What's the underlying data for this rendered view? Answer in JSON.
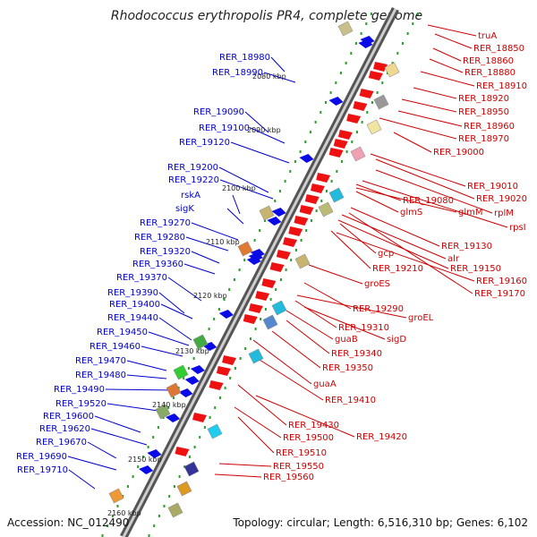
{
  "title": "Rhodococcus erythropolis PR4, complete genome",
  "footer": {
    "accession": "Accession: NC_012490",
    "topology": "Topology: circular; Length: 6,516,310 bp; Genes: 6,102"
  },
  "colors": {
    "backbone": "#777777",
    "tick": "#2a9d2a",
    "left_label": "#0000cc",
    "right_label": "#cc0000"
  },
  "kbp_marks": [
    "2080 kbp",
    "2090 kbp",
    "2100 kbp",
    "2110 kbp",
    "2120 kbp",
    "2130 kbp",
    "2140 kbp",
    "2150 kbp",
    "2160 kbp"
  ],
  "left_labels": [
    "RER_18980",
    "RER_18990",
    "RER_19090",
    "RER_19100",
    "RER_19120",
    "RER_19200",
    "RER_19220",
    "rskA",
    "sigK",
    "RER_19270",
    "RER_19280",
    "RER_19320",
    "RER_19360",
    "RER_19370",
    "RER_19390",
    "RER_19400",
    "RER_19440",
    "RER_19450",
    "RER_19460",
    "RER_19470",
    "RER_19480",
    "RER_19490",
    "RER_19520",
    "RER_19600",
    "RER_19620",
    "RER_19670",
    "RER_19690",
    "RER_19710"
  ],
  "right_labels": [
    "truA",
    "RER_18850",
    "RER_18860",
    "RER_18880",
    "RER_18910",
    "RER_18920",
    "RER_18950",
    "RER_18960",
    "RER_18970",
    "RER_19000",
    "RER_19010",
    "RER_19020",
    "RER_19080",
    "rplM",
    "glmS",
    "glmM",
    "rpsI",
    "RER_19130",
    "alr",
    "gcp",
    "RER_19150",
    "RER_19210",
    "RER_19160",
    "groES",
    "RER_19170",
    "RER_19290",
    "groEL",
    "RER_19310",
    "sigD",
    "guaB",
    "RER_19340",
    "RER_19350",
    "guaA",
    "RER_19410",
    "RER_19430",
    "RER_19420",
    "RER_19500",
    "RER_19510",
    "RER_19550",
    "RER_19560"
  ]
}
